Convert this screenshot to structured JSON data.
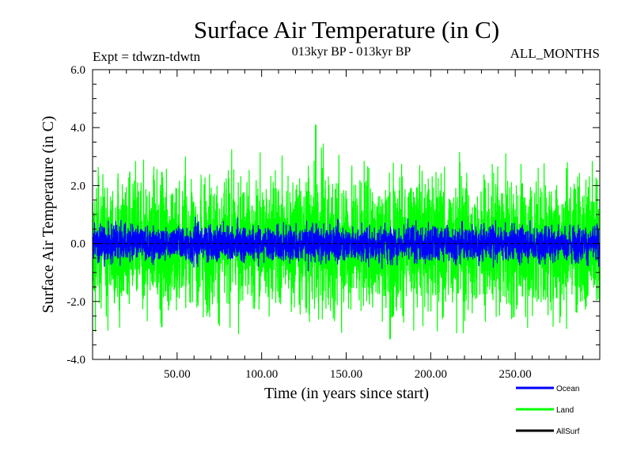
{
  "chart_data": {
    "type": "line",
    "title": "Surface Air Temperature (in C)",
    "subtitle": "013kyr BP - 013kyr BP",
    "expt_label": "Expt = tdwzn-tdwtn",
    "months_label": "ALL_MONTHS",
    "xlabel": "Time (in years since start)",
    "ylabel": "Surface Air Temperature (in C)",
    "xlim": [
      0,
      300
    ],
    "ylim": [
      -4.0,
      6.0
    ],
    "xticks": [
      50,
      100,
      150,
      200,
      250
    ],
    "xtick_labels": [
      "50.00",
      "100.00",
      "150.00",
      "200.00",
      "250.00"
    ],
    "yticks": [
      -4,
      -2,
      0,
      2,
      4,
      6
    ],
    "ytick_labels": [
      "-4.0",
      "-2.0",
      "0.0",
      "2.0",
      "4.0",
      "6.0"
    ],
    "zero_line": 0,
    "series": [
      {
        "name": "Land",
        "color": "#00ff00",
        "typical_range": [
          -2.3,
          2.3
        ],
        "max": 4.1,
        "min": -3.3
      },
      {
        "name": "Ocean",
        "color": "#0000ff",
        "typical_range": [
          -0.6,
          0.6
        ],
        "max": 1.1,
        "min": -1.1
      },
      {
        "name": "AllSurf",
        "color": "#000000"
      }
    ]
  }
}
